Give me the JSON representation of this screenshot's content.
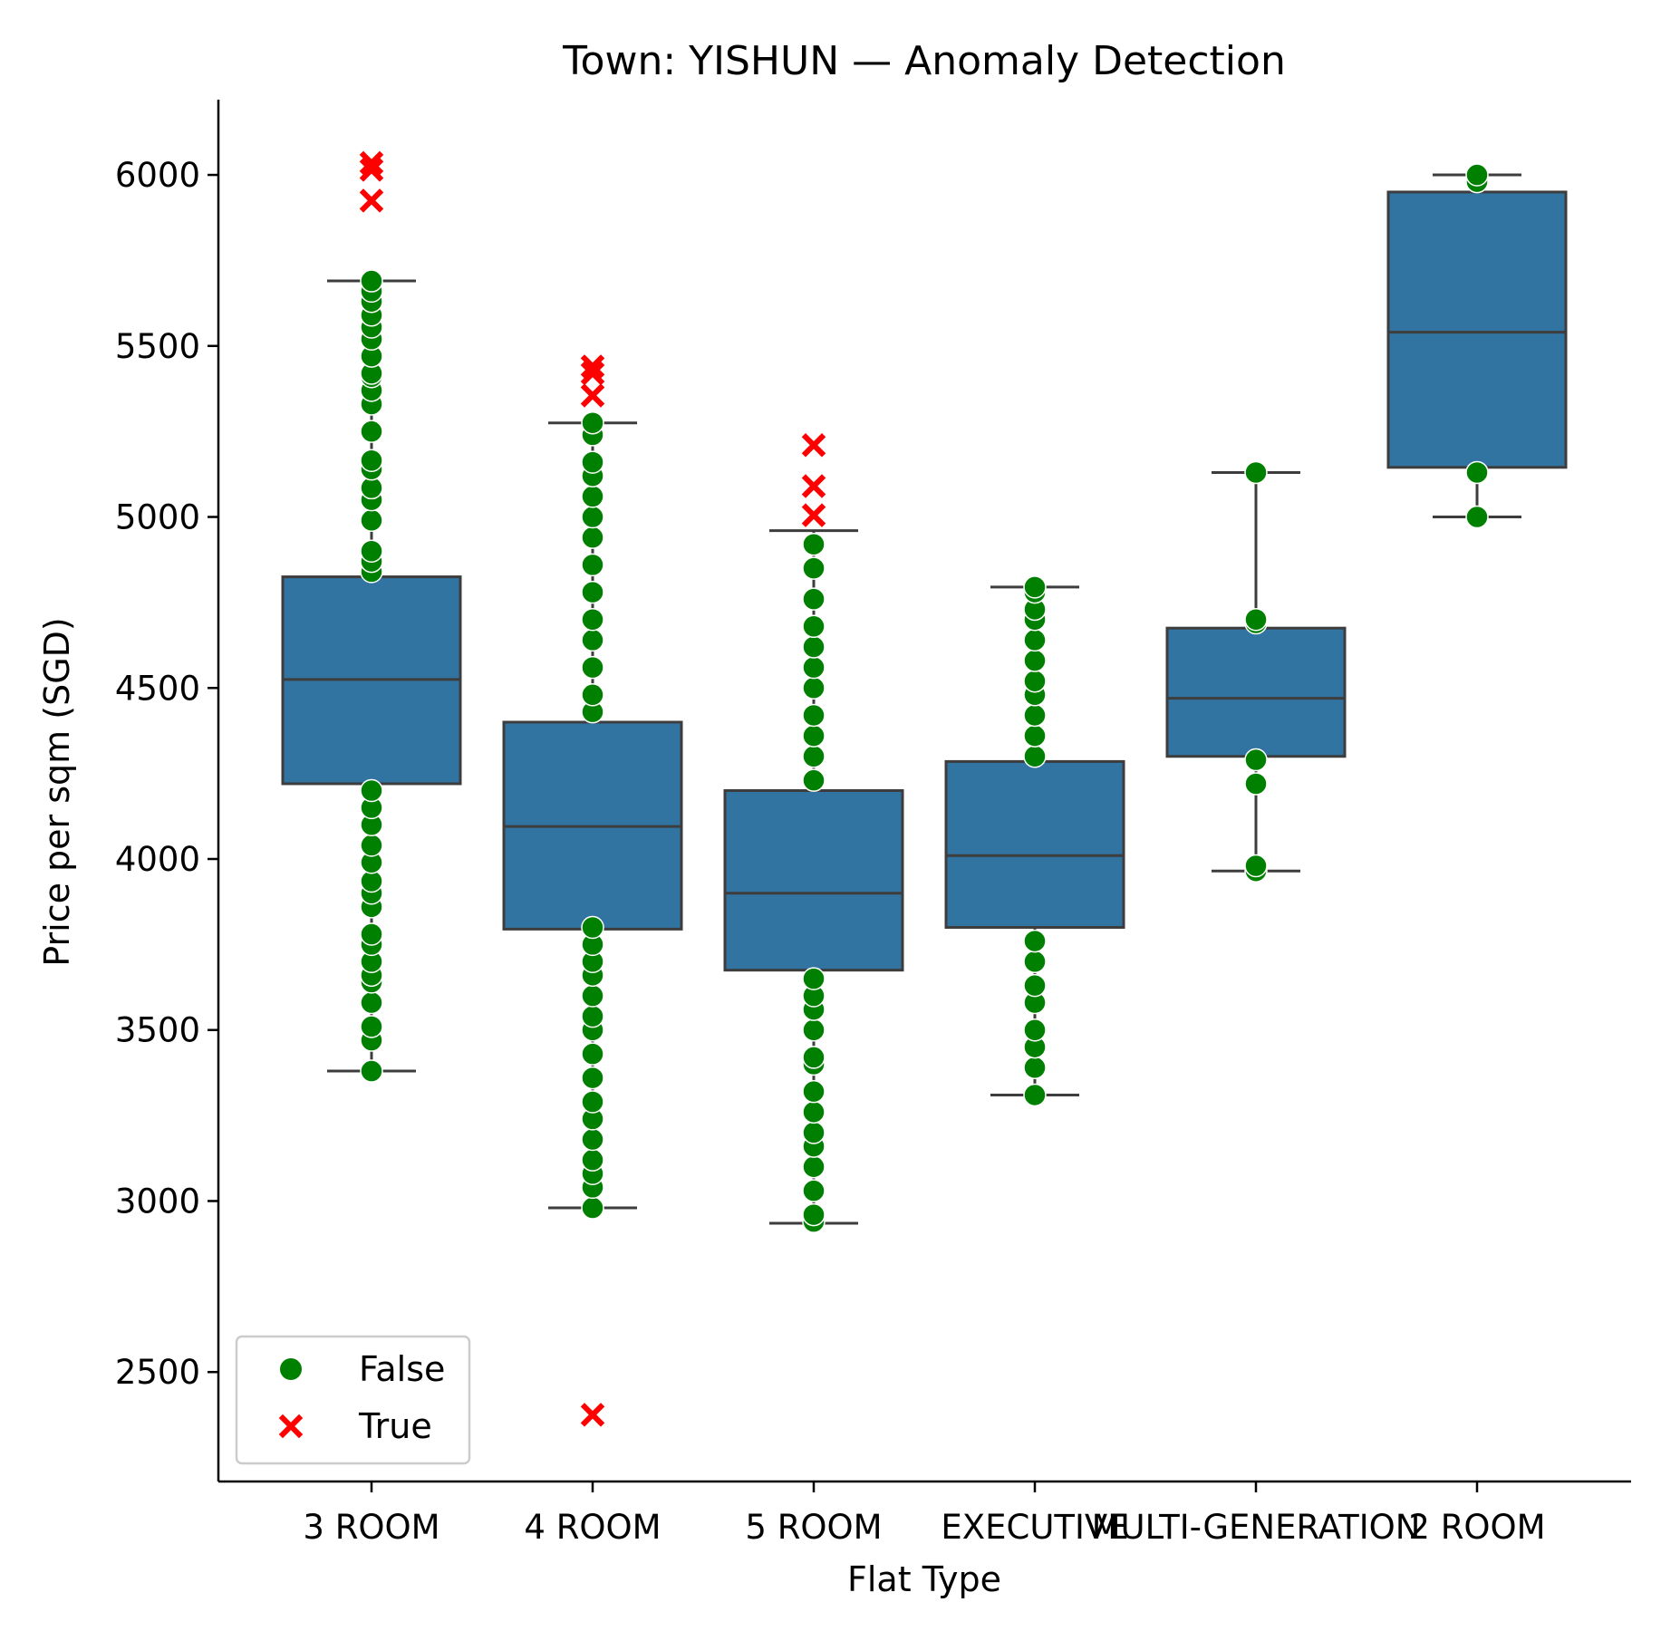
{
  "chart_data": {
    "type": "box",
    "title": "Town: YISHUN — Anomaly Detection",
    "xlabel": "Flat Type",
    "ylabel": "Price per sqm (SGD)",
    "ylim": [
      2180,
      6220
    ],
    "yticks": [
      2500,
      3000,
      3500,
      4000,
      4500,
      5000,
      5500,
      6000
    ],
    "grid": false,
    "legend": {
      "placement": "lower-left",
      "entries": [
        {
          "label": "False",
          "marker": "circle",
          "color": "#008000"
        },
        {
          "label": "True",
          "marker": "x",
          "color": "#ff0000"
        }
      ]
    },
    "box_color": "#3274a1",
    "edge_color": "#3d3d3d",
    "categories": [
      "3 ROOM",
      "4 ROOM",
      "5 ROOM",
      "EXECUTIVE",
      "MULTI-GENERATION",
      "2 ROOM"
    ],
    "boxes": [
      {
        "category": "3 ROOM",
        "whisker_low": 3380,
        "q1": 4220,
        "median": 4525,
        "q3": 4825,
        "whisker_high": 5690
      },
      {
        "category": "4 ROOM",
        "whisker_low": 2980,
        "q1": 3795,
        "median": 4095,
        "q3": 4400,
        "whisker_high": 5275
      },
      {
        "category": "5 ROOM",
        "whisker_low": 2935,
        "q1": 3675,
        "median": 3900,
        "q3": 4200,
        "whisker_high": 4960
      },
      {
        "category": "EXECUTIVE",
        "whisker_low": 3310,
        "q1": 3800,
        "median": 4010,
        "q3": 4285,
        "whisker_high": 4795
      },
      {
        "category": "MULTI-GENERATION",
        "whisker_low": 3965,
        "q1": 4300,
        "median": 4470,
        "q3": 4675,
        "whisker_high": 5130
      },
      {
        "category": "2 ROOM",
        "whisker_low": 5000,
        "q1": 5145,
        "median": 5540,
        "q3": 5950,
        "whisker_high": 6000
      }
    ],
    "points_false": [
      {
        "category": "3 ROOM",
        "values": [
          3380,
          3470,
          3510,
          3580,
          3640,
          3660,
          3700,
          3750,
          3780,
          3860,
          3900,
          3935,
          3990,
          4040,
          4100,
          4150,
          4200,
          4840,
          4870,
          4900,
          4990,
          5050,
          5085,
          5140,
          5165,
          5250,
          5330,
          5370,
          5410,
          5420,
          5470,
          5520,
          5555,
          5590,
          5630,
          5660,
          5690
        ]
      },
      {
        "category": "4 ROOM",
        "values": [
          2980,
          3040,
          3080,
          3120,
          3180,
          3240,
          3290,
          3360,
          3430,
          3500,
          3540,
          3600,
          3660,
          3700,
          3750,
          3800,
          4430,
          4480,
          4560,
          4640,
          4700,
          4780,
          4860,
          4940,
          5000,
          5060,
          5120,
          5160,
          5240,
          5275
        ]
      },
      {
        "category": "5 ROOM",
        "values": [
          2940,
          2960,
          3030,
          3100,
          3160,
          3200,
          3260,
          3320,
          3400,
          3420,
          3500,
          3560,
          3600,
          3650,
          4230,
          4300,
          4360,
          4420,
          4500,
          4560,
          4620,
          4680,
          4760,
          4850,
          4920
        ]
      },
      {
        "category": "EXECUTIVE",
        "values": [
          3310,
          3390,
          3450,
          3500,
          3580,
          3630,
          3700,
          3760,
          4300,
          4360,
          4420,
          4480,
          4520,
          4580,
          4640,
          4700,
          4730,
          4780,
          4795
        ]
      },
      {
        "category": "MULTI-GENERATION",
        "values": [
          3965,
          3980,
          4220,
          4290,
          4690,
          4700,
          5130
        ]
      },
      {
        "category": "2 ROOM",
        "values": [
          5000,
          5130,
          5980,
          6000
        ]
      }
    ],
    "points_true": [
      {
        "category": "3 ROOM",
        "values": [
          5925,
          6015,
          6035
        ]
      },
      {
        "category": "4 ROOM",
        "values": [
          2375,
          5355,
          5420,
          5440
        ]
      },
      {
        "category": "5 ROOM",
        "values": [
          5005,
          5090,
          5210
        ]
      }
    ]
  }
}
